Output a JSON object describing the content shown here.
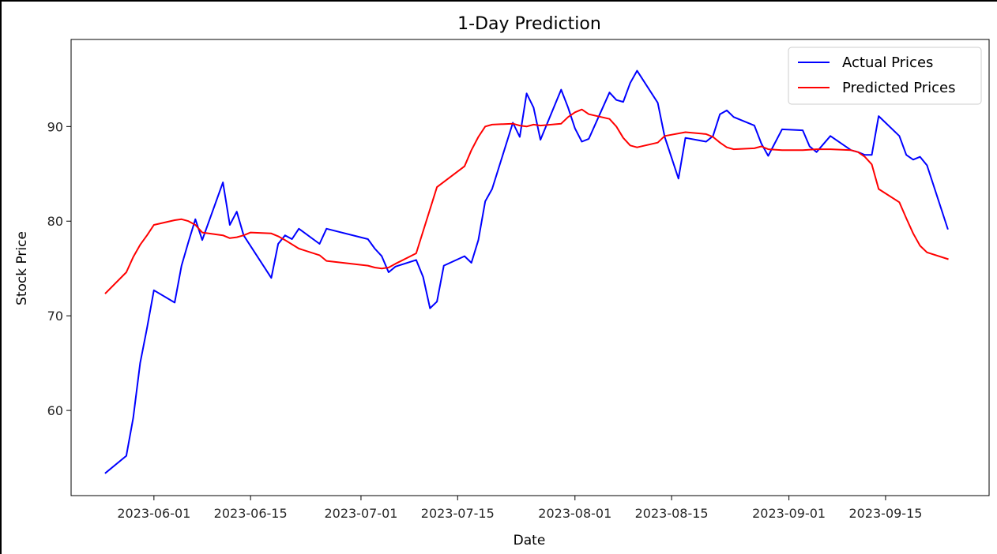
{
  "chart_data": {
    "type": "line",
    "title": "1-Day Prediction",
    "xlabel": "Date",
    "ylabel": "Stock Price",
    "x_ticks": [
      "2023-06-01",
      "2023-06-15",
      "2023-07-01",
      "2023-07-15",
      "2023-08-01",
      "2023-08-15",
      "2023-09-01",
      "2023-09-15"
    ],
    "y_ticks": [
      60,
      70,
      80,
      90
    ],
    "xlim": [
      "2023-05-20",
      "2023-09-30"
    ],
    "ylim": [
      51,
      99.2
    ],
    "grid": false,
    "legend_position": "top-right",
    "series": [
      {
        "name": "Actual Prices",
        "color": "#0000ff",
        "points": [
          [
            "2023-05-25",
            53.4
          ],
          [
            "2023-05-28",
            55.2
          ],
          [
            "2023-05-29",
            59.2
          ],
          [
            "2023-05-30",
            65.0
          ],
          [
            "2023-05-31",
            68.7
          ],
          [
            "2023-06-01",
            72.7
          ],
          [
            "2023-06-04",
            71.4
          ],
          [
            "2023-06-05",
            75.3
          ],
          [
            "2023-06-06",
            77.8
          ],
          [
            "2023-06-07",
            80.2
          ],
          [
            "2023-06-08",
            78.0
          ],
          [
            "2023-06-11",
            84.1
          ],
          [
            "2023-06-12",
            79.6
          ],
          [
            "2023-06-13",
            81.0
          ],
          [
            "2023-06-14",
            78.5
          ],
          [
            "2023-06-18",
            74.0
          ],
          [
            "2023-06-19",
            77.6
          ],
          [
            "2023-06-20",
            78.5
          ],
          [
            "2023-06-21",
            78.1
          ],
          [
            "2023-06-22",
            79.2
          ],
          [
            "2023-06-25",
            77.6
          ],
          [
            "2023-06-26",
            79.2
          ],
          [
            "2023-07-02",
            78.1
          ],
          [
            "2023-07-03",
            77.1
          ],
          [
            "2023-07-04",
            76.3
          ],
          [
            "2023-07-05",
            74.6
          ],
          [
            "2023-07-06",
            75.2
          ],
          [
            "2023-07-09",
            75.9
          ],
          [
            "2023-07-10",
            74.1
          ],
          [
            "2023-07-11",
            70.8
          ],
          [
            "2023-07-12",
            71.5
          ],
          [
            "2023-07-13",
            75.3
          ],
          [
            "2023-07-16",
            76.3
          ],
          [
            "2023-07-17",
            75.6
          ],
          [
            "2023-07-18",
            78.0
          ],
          [
            "2023-07-19",
            82.1
          ],
          [
            "2023-07-20",
            83.4
          ],
          [
            "2023-07-23",
            90.4
          ],
          [
            "2023-07-24",
            88.9
          ],
          [
            "2023-07-25",
            93.5
          ],
          [
            "2023-07-26",
            92.0
          ],
          [
            "2023-07-27",
            88.6
          ],
          [
            "2023-07-30",
            93.9
          ],
          [
            "2023-07-31",
            92.0
          ],
          [
            "2023-08-01",
            89.8
          ],
          [
            "2023-08-02",
            88.4
          ],
          [
            "2023-08-03",
            88.7
          ],
          [
            "2023-08-06",
            93.6
          ],
          [
            "2023-08-07",
            92.8
          ],
          [
            "2023-08-08",
            92.6
          ],
          [
            "2023-08-09",
            94.6
          ],
          [
            "2023-08-10",
            95.9
          ],
          [
            "2023-08-13",
            92.5
          ],
          [
            "2023-08-14",
            88.9
          ],
          [
            "2023-08-16",
            84.5
          ],
          [
            "2023-08-17",
            88.8
          ],
          [
            "2023-08-20",
            88.4
          ],
          [
            "2023-08-21",
            89.0
          ],
          [
            "2023-08-22",
            91.3
          ],
          [
            "2023-08-23",
            91.7
          ],
          [
            "2023-08-24",
            91.0
          ],
          [
            "2023-08-27",
            90.1
          ],
          [
            "2023-08-28",
            88.2
          ],
          [
            "2023-08-29",
            86.9
          ],
          [
            "2023-08-31",
            89.7
          ],
          [
            "2023-09-03",
            89.6
          ],
          [
            "2023-09-04",
            87.9
          ],
          [
            "2023-09-05",
            87.3
          ],
          [
            "2023-09-07",
            89.0
          ],
          [
            "2023-09-10",
            87.5
          ],
          [
            "2023-09-11",
            87.3
          ],
          [
            "2023-09-12",
            87.0
          ],
          [
            "2023-09-13",
            87.0
          ],
          [
            "2023-09-14",
            91.1
          ],
          [
            "2023-09-17",
            89.0
          ],
          [
            "2023-09-18",
            87.0
          ],
          [
            "2023-09-19",
            86.5
          ],
          [
            "2023-09-20",
            86.8
          ],
          [
            "2023-09-21",
            85.9
          ],
          [
            "2023-09-24",
            79.2
          ]
        ]
      },
      {
        "name": "Predicted Prices",
        "color": "#ff0000",
        "points": [
          [
            "2023-05-25",
            72.4
          ],
          [
            "2023-05-28",
            74.6
          ],
          [
            "2023-05-29",
            76.2
          ],
          [
            "2023-05-30",
            77.5
          ],
          [
            "2023-05-31",
            78.5
          ],
          [
            "2023-06-01",
            79.6
          ],
          [
            "2023-06-04",
            80.1
          ],
          [
            "2023-06-05",
            80.2
          ],
          [
            "2023-06-06",
            80.0
          ],
          [
            "2023-06-07",
            79.6
          ],
          [
            "2023-06-08",
            78.8
          ],
          [
            "2023-06-11",
            78.5
          ],
          [
            "2023-06-12",
            78.2
          ],
          [
            "2023-06-13",
            78.3
          ],
          [
            "2023-06-14",
            78.5
          ],
          [
            "2023-06-15",
            78.8
          ],
          [
            "2023-06-18",
            78.7
          ],
          [
            "2023-06-19",
            78.4
          ],
          [
            "2023-06-20",
            78.0
          ],
          [
            "2023-06-22",
            77.1
          ],
          [
            "2023-06-25",
            76.4
          ],
          [
            "2023-06-26",
            75.8
          ],
          [
            "2023-07-02",
            75.3
          ],
          [
            "2023-07-03",
            75.1
          ],
          [
            "2023-07-04",
            75.0
          ],
          [
            "2023-07-05",
            75.1
          ],
          [
            "2023-07-06",
            75.5
          ],
          [
            "2023-07-09",
            76.6
          ],
          [
            "2023-07-12",
            83.6
          ],
          [
            "2023-07-16",
            85.8
          ],
          [
            "2023-07-17",
            87.5
          ],
          [
            "2023-07-18",
            88.9
          ],
          [
            "2023-07-19",
            90.0
          ],
          [
            "2023-07-20",
            90.2
          ],
          [
            "2023-07-23",
            90.3
          ],
          [
            "2023-07-24",
            90.1
          ],
          [
            "2023-07-25",
            90.0
          ],
          [
            "2023-07-26",
            90.2
          ],
          [
            "2023-07-27",
            90.1
          ],
          [
            "2023-07-30",
            90.3
          ],
          [
            "2023-07-31",
            91.0
          ],
          [
            "2023-08-01",
            91.5
          ],
          [
            "2023-08-02",
            91.8
          ],
          [
            "2023-08-03",
            91.3
          ],
          [
            "2023-08-06",
            90.8
          ],
          [
            "2023-08-07",
            90.0
          ],
          [
            "2023-08-08",
            88.8
          ],
          [
            "2023-08-09",
            88.0
          ],
          [
            "2023-08-10",
            87.8
          ],
          [
            "2023-08-13",
            88.3
          ],
          [
            "2023-08-14",
            89.0
          ],
          [
            "2023-08-17",
            89.4
          ],
          [
            "2023-08-20",
            89.2
          ],
          [
            "2023-08-21",
            88.9
          ],
          [
            "2023-08-22",
            88.3
          ],
          [
            "2023-08-23",
            87.8
          ],
          [
            "2023-08-24",
            87.6
          ],
          [
            "2023-08-27",
            87.7
          ],
          [
            "2023-08-28",
            87.9
          ],
          [
            "2023-08-29",
            87.6
          ],
          [
            "2023-08-31",
            87.5
          ],
          [
            "2023-09-03",
            87.5
          ],
          [
            "2023-09-05",
            87.6
          ],
          [
            "2023-09-07",
            87.6
          ],
          [
            "2023-09-10",
            87.5
          ],
          [
            "2023-09-11",
            87.3
          ],
          [
            "2023-09-12",
            86.8
          ],
          [
            "2023-09-13",
            86.0
          ],
          [
            "2023-09-14",
            83.4
          ],
          [
            "2023-09-17",
            82.0
          ],
          [
            "2023-09-18",
            80.3
          ],
          [
            "2023-09-19",
            78.7
          ],
          [
            "2023-09-20",
            77.4
          ],
          [
            "2023-09-21",
            76.7
          ],
          [
            "2023-09-24",
            76.0
          ]
        ]
      }
    ]
  }
}
